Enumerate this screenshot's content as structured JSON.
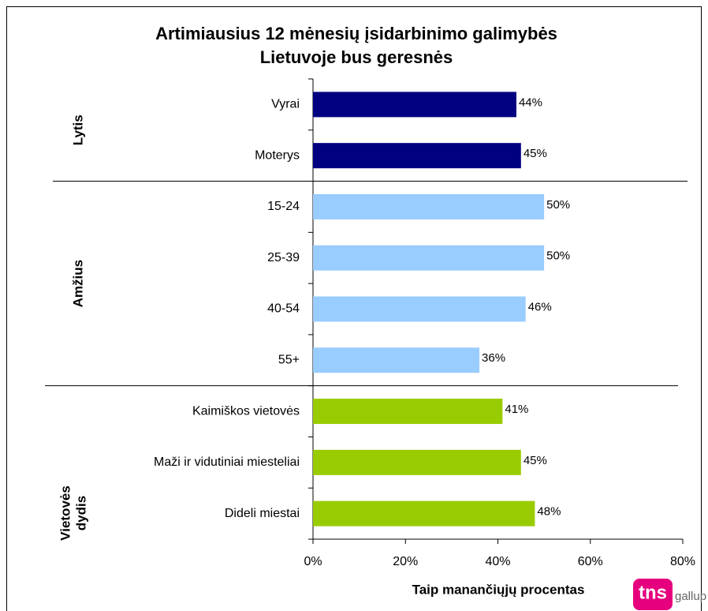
{
  "chart_data": {
    "type": "grouped-hbar",
    "title": [
      "Artimiausius 12 mėnesių įsidarbinimo galimybės",
      "Lietuvoje bus geresnės"
    ],
    "x_label": "Taip manančiųjų procentas",
    "groups": [
      {
        "name": [
          "Lytis"
        ],
        "color": "#000080",
        "categories": [
          "Vyrai",
          "Moterys"
        ],
        "values": [
          44,
          45
        ],
        "value_labels": [
          "44%",
          "45%"
        ]
      },
      {
        "name": [
          "Amžius"
        ],
        "color": "#99ccff",
        "categories": [
          "15-24",
          "25-39",
          "40-54",
          "55+"
        ],
        "values": [
          50,
          50,
          46,
          36
        ],
        "value_labels": [
          "50%",
          "50%",
          "46%",
          "36%"
        ]
      },
      {
        "name": [
          "Vietovės",
          "dydis"
        ],
        "color": "#99cc00",
        "categories": [
          "Kaimiškos vietovės",
          "Maži ir vidutiniai miesteliai",
          "Dideli miestai"
        ],
        "values": [
          41,
          45,
          48
        ],
        "value_labels": [
          "41%",
          "45%",
          "48%"
        ]
      }
    ],
    "xlim": [
      0,
      80
    ],
    "xticks": [
      {
        "value": 0,
        "label": "0%"
      },
      {
        "value": 20,
        "label": "20%"
      },
      {
        "value": 40,
        "label": "40%"
      },
      {
        "value": 60,
        "label": "60%"
      },
      {
        "value": 80,
        "label": "80%"
      }
    ],
    "logo": {
      "main": "tns",
      "sub": "gallup"
    }
  }
}
